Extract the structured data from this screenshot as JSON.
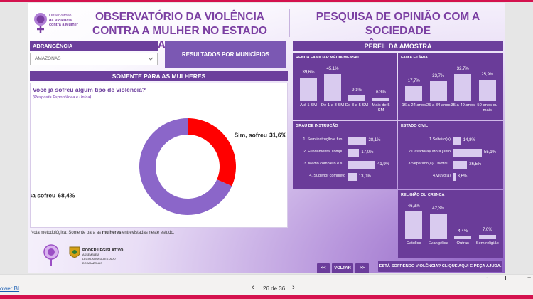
{
  "header": {
    "logo_lines": [
      "Observatório",
      "da Violência",
      "contra a Mulher"
    ],
    "title": "OBSERVATÓRIO DA VIOLÊNCIA CONTRA A MULHER NO ESTADO DO AMAZONAS",
    "subtitle_lines": [
      "PESQUISA DE OPINIÃO COM A SOCIEDADE",
      "VIOLÊNCIA SOFRIDA"
    ]
  },
  "filter": {
    "label": "ABRANGÊNCIA",
    "selected": "AMAZONAS"
  },
  "municipios_button": "RESULTADOS POR MUNICÍPIOS",
  "donut_panel": {
    "header": "SOMENTE PARA AS MULHERES",
    "question": "Você já sofreu algum tipo de violência?",
    "note": "(Resposta Espontânea e Única).",
    "chart": {
      "type": "donut",
      "categories": [
        "Sim, sofreu",
        "Nunca sofreu"
      ],
      "values": [
        31.6,
        68.4
      ],
      "value_labels": [
        "31,6%",
        "68,4%"
      ],
      "colors": [
        "#ff0000",
        "#8b66c9"
      ]
    }
  },
  "methodology": {
    "prefix": "Nota metodológica: Somente para as",
    "emphasis": "mulheres",
    "suffix": "entrevistadas neste estudo."
  },
  "footer_logos": {
    "line1": "PODER LEGISLATIVO",
    "line2": "ASSEMBLEIA LEGISLATIVA DO ESTADO DO AMAZONAS"
  },
  "profile": {
    "title": "PERFIL DA AMOSTRA",
    "charts": [
      {
        "type": "bar",
        "orientation": "vertical",
        "title": "RENDA FAMILIAR MÉDIA MENSAL",
        "categories": [
          "Até 1 SM",
          "De 1 a 3 SM",
          "De 3 a 5 SM",
          "Mais de 5 SM"
        ],
        "values": [
          39.6,
          45.1,
          9.1,
          6.3
        ],
        "value_labels": [
          "39,6%",
          "45,1%",
          "9,1%",
          "6,3%"
        ],
        "color": "#d9cbef"
      },
      {
        "type": "bar",
        "orientation": "vertical",
        "title": "FAIXA ETÁRIA",
        "categories": [
          "16 a 24 anos",
          "25 a 34 anos",
          "35 a 49 anos",
          "50 anos ou mais"
        ],
        "values": [
          17.7,
          23.7,
          32.7,
          25.9
        ],
        "value_labels": [
          "17,7%",
          "23,7%",
          "32,7%",
          "25,9%"
        ],
        "color": "#d9cbef"
      },
      {
        "type": "bar",
        "orientation": "horizontal",
        "title": "GRAU DE INSTRUÇÃO",
        "categories": [
          "1. Sem instrução e fun...",
          "2. Fundamental compl...",
          "3. Médio completo e s...",
          "4. Superior completo"
        ],
        "values": [
          28.1,
          17.0,
          41.9,
          13.0
        ],
        "value_labels": [
          "28,1%",
          "17,0%",
          "41,9%",
          "13,0%"
        ],
        "color": "#d9cbef"
      },
      {
        "type": "bar",
        "orientation": "horizontal",
        "title": "ESTADO CIVIL",
        "categories": [
          "1.Solteiro(a)",
          "2.Casado(a)/ Mora junto",
          "3.Separado(a)/ Divorci...",
          "4.Viúvo(a)"
        ],
        "values": [
          14.8,
          55.1,
          26.5,
          3.6
        ],
        "value_labels": [
          "14,8%",
          "55,1%",
          "26,5%",
          "3,6%"
        ],
        "color": "#d9cbef"
      },
      {
        "type": "bar",
        "orientation": "vertical",
        "title": "RELIGIÃO OU CRENÇA",
        "categories": [
          "Católica",
          "Evangélica",
          "Outras",
          "Sem religião"
        ],
        "values": [
          46.3,
          42.3,
          4.4,
          7.0
        ],
        "value_labels": [
          "46,3%",
          "42,3%",
          "4,4%",
          "7,0%"
        ],
        "color": "#d9cbef"
      }
    ]
  },
  "navigation": {
    "first": "<<",
    "back": "VOLTAR",
    "next": ">>",
    "help": "ESTÁ SOFRENDO VIOLÊNCIA? CLIQUE AQUI E PEÇA AJUDA."
  },
  "app_bar": {
    "brand": "ower BI",
    "prev": "‹",
    "page": "26 de 36",
    "next": "›",
    "zoom_out": "-",
    "zoom_in": "+"
  }
}
